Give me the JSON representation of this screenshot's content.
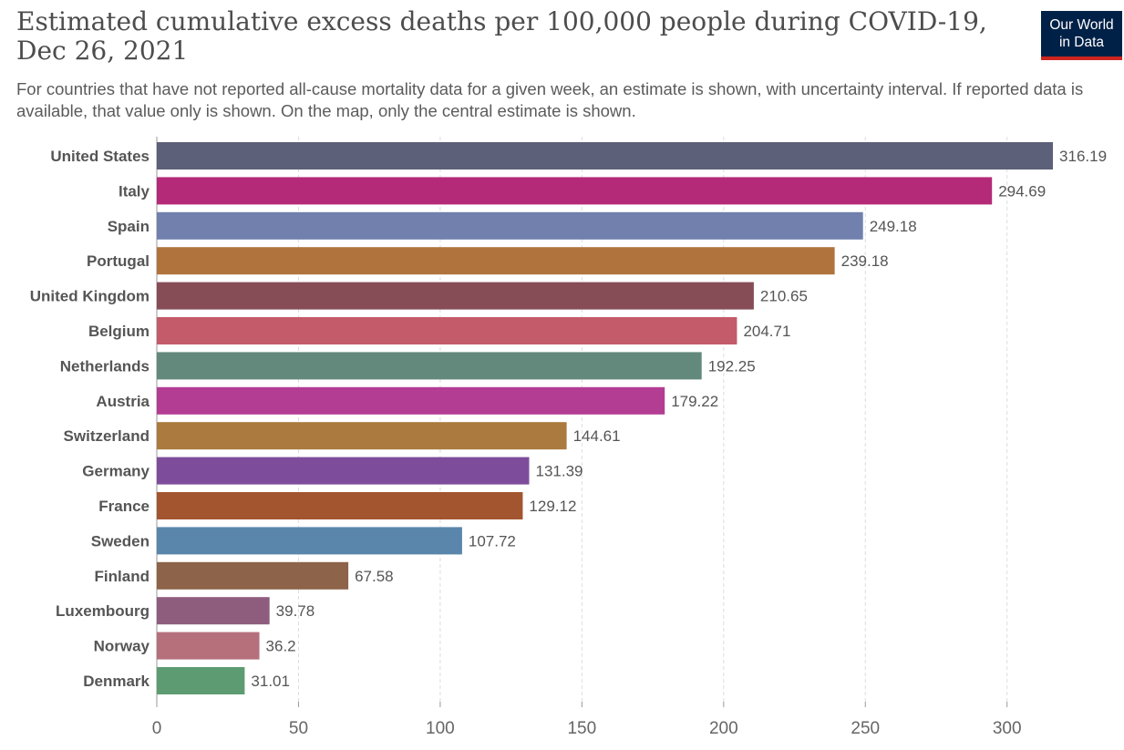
{
  "header": {
    "title": "Estimated cumulative excess deaths per 100,000 people during COVID-19, Dec 26, 2021",
    "subtitle": "For countries that have not reported all-cause mortality data for a given week, an estimate is shown, with uncertainty interval. If reported data is available, that value only is shown. On the map, only the central estimate is shown.",
    "logo_line1": "Our World",
    "logo_line2": "in Data"
  },
  "colors": {
    "logo_background": "#002147",
    "logo_accent": "#ce261e"
  },
  "chart_data": {
    "type": "bar",
    "orientation": "horizontal",
    "title": "Estimated cumulative excess deaths per 100,000 people during COVID-19, Dec 26, 2021",
    "categories": [
      "United States",
      "Italy",
      "Spain",
      "Portugal",
      "United Kingdom",
      "Belgium",
      "Netherlands",
      "Austria",
      "Switzerland",
      "Germany",
      "France",
      "Sweden",
      "Finland",
      "Luxembourg",
      "Norway",
      "Denmark"
    ],
    "values": [
      316.19,
      294.69,
      249.18,
      239.18,
      210.65,
      204.71,
      192.25,
      179.22,
      144.61,
      131.39,
      129.12,
      107.72,
      67.58,
      39.78,
      36.2,
      31.01
    ],
    "value_labels": [
      "316.19",
      "294.69",
      "249.18",
      "239.18",
      "210.65",
      "204.71",
      "192.25",
      "179.22",
      "144.61",
      "131.39",
      "129.12",
      "107.72",
      "67.58",
      "39.78",
      "36.2",
      "31.01"
    ],
    "colors": [
      "#5c6078",
      "#b52a78",
      "#7180ad",
      "#b0733d",
      "#864d57",
      "#c45b6a",
      "#62897b",
      "#b33d93",
      "#aa7a3e",
      "#7d4d9b",
      "#a35530",
      "#5986aa",
      "#8d6349",
      "#8e5d7e",
      "#b5707c",
      "#5d9c73"
    ],
    "x_ticks": [
      "0",
      "50",
      "100",
      "150",
      "200",
      "250",
      "300"
    ],
    "xlim": [
      0,
      320
    ],
    "grid": "vertical dashed"
  }
}
